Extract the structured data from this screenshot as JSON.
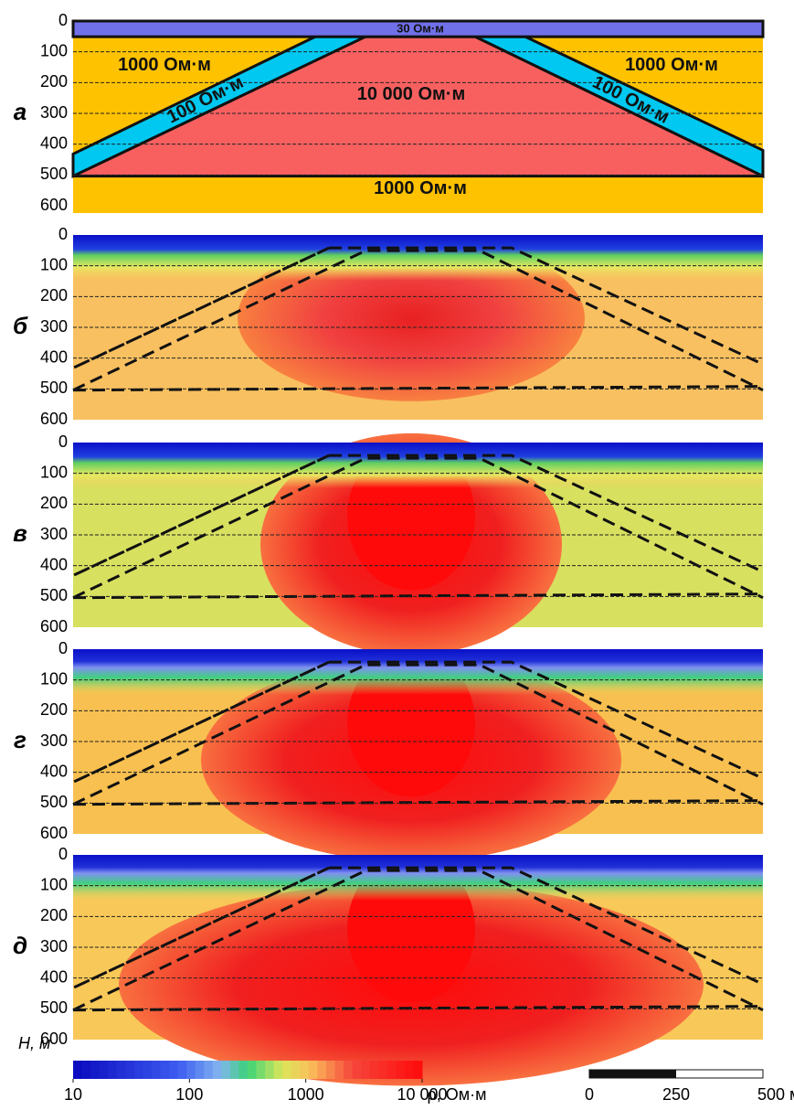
{
  "depth_axis": {
    "label": "H, м",
    "ylim": [
      0,
      600
    ],
    "yticks": [
      0,
      100,
      200,
      300,
      400,
      500,
      600
    ]
  },
  "panels": [
    {
      "label": "а"
    },
    {
      "label": "б"
    },
    {
      "label": "в"
    },
    {
      "label": "г"
    },
    {
      "label": "д"
    }
  ],
  "model": {
    "top_layer": "30 Ом·м",
    "host_left": "1000 Ом·м",
    "host_right": "1000 Ом·м",
    "body": "10 000 Ом·м",
    "band_left": "100 Ом·м",
    "band_right": "100 Ом·м",
    "basement": "1000 Ом·м"
  },
  "colorbar": {
    "label": "ρ, Ом·м",
    "log_scale": true,
    "clim": [
      10,
      10000
    ],
    "ticks": [
      10,
      100,
      1000,
      {
        "value": 10000,
        "label": "10 000"
      }
    ]
  },
  "scale_bar": {
    "xlim": [
      0,
      500
    ],
    "ticks": [
      0,
      250,
      {
        "value": 500,
        "label": "500 м"
      }
    ]
  }
}
